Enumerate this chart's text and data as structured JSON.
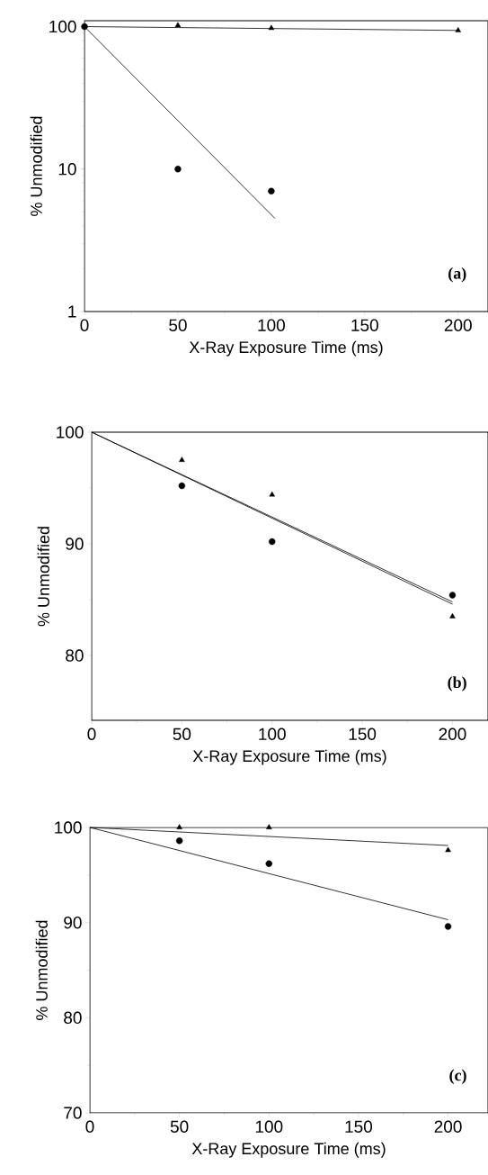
{
  "chart_data": [
    {
      "type": "scatter",
      "xlabel": "X-Ray Exposure Time (ms)",
      "ylabel": "% Unmodified",
      "annotations": [
        "(a)"
      ],
      "log": "y",
      "xlim": [
        0,
        216
      ],
      "ylim": [
        1,
        110
      ],
      "xticks": [
        0,
        50,
        100,
        150,
        200
      ],
      "yticks": [
        1,
        10,
        100
      ],
      "series": [
        {
          "marker": "triangle",
          "color": "#000000",
          "x": [
            50,
            100,
            200
          ],
          "values": [
            102,
            97.5,
            94
          ]
        },
        {
          "marker": "circle",
          "color": "#000000",
          "x": [
            0,
            50,
            100
          ],
          "values": [
            100,
            10,
            7
          ]
        },
        {
          "type": "line",
          "color": "#000000",
          "x": [
            0,
            200
          ],
          "values": [
            100,
            94
          ]
        },
        {
          "type": "line",
          "color": "#000000",
          "x": [
            0,
            102
          ],
          "values": [
            100,
            4.5
          ]
        }
      ]
    },
    {
      "type": "scatter",
      "xlabel": "X-Ray Exposure Time (ms)",
      "ylabel": "% Unmodified",
      "annotations": [
        "(b)"
      ],
      "xlim": [
        0,
        219.7
      ],
      "ylim": [
        74.2,
        100
      ],
      "xticks": [
        0,
        50,
        100,
        150,
        200
      ],
      "yticks": [
        80,
        90,
        100
      ],
      "series": [
        {
          "marker": "triangle",
          "color": "#000000",
          "x": [
            50,
            100,
            200
          ],
          "values": [
            97.5,
            94.4,
            83.5
          ]
        },
        {
          "marker": "circle",
          "color": "#000000",
          "x": [
            50,
            100,
            200
          ],
          "values": [
            95.2,
            90.2,
            85.4
          ]
        },
        {
          "type": "line",
          "color": "#000000",
          "x": [
            0,
            200
          ],
          "values": [
            100,
            84.6
          ]
        },
        {
          "type": "line",
          "color": "#000000",
          "x": [
            0,
            200
          ],
          "values": [
            100,
            84.8
          ]
        }
      ]
    },
    {
      "type": "scatter",
      "xlabel": "X-Ray Exposure Time (ms)",
      "ylabel": "% Unmodified",
      "annotations": [
        "(c)"
      ],
      "xlim": [
        0,
        222.3
      ],
      "ylim": [
        70,
        100
      ],
      "xticks": [
        0,
        50,
        100,
        150,
        200
      ],
      "yticks": [
        70,
        80,
        90,
        100
      ],
      "series": [
        {
          "marker": "triangle",
          "color": "#000000",
          "x": [
            50,
            100,
            200
          ],
          "values": [
            100,
            100,
            97.6
          ]
        },
        {
          "marker": "circle",
          "color": "#000000",
          "x": [
            50,
            100,
            200
          ],
          "values": [
            98.6,
            96.2,
            89.6
          ]
        },
        {
          "type": "line",
          "color": "#000000",
          "x": [
            0,
            200
          ],
          "values": [
            100,
            98.1
          ]
        },
        {
          "type": "line",
          "color": "#000000",
          "x": [
            0,
            200
          ],
          "values": [
            100,
            90.3
          ]
        }
      ]
    }
  ]
}
